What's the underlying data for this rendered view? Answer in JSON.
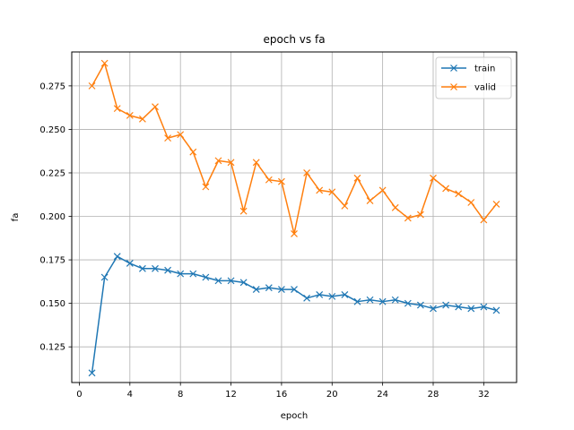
{
  "chart_data": {
    "type": "line",
    "title": "epoch vs fa",
    "xlabel": "epoch",
    "ylabel": "fa",
    "xlim": [
      -0.6,
      34.6
    ],
    "ylim": [
      0.1045,
      0.2945
    ],
    "xticks": [
      0,
      4,
      8,
      12,
      16,
      20,
      24,
      28,
      32
    ],
    "yticks": [
      0.125,
      0.15,
      0.175,
      0.2,
      0.225,
      0.25,
      0.275
    ],
    "ytick_labels": [
      "0.125",
      "0.150",
      "0.175",
      "0.200",
      "0.225",
      "0.250",
      "0.275"
    ],
    "grid": true,
    "legend_position": "top-right",
    "x": [
      1,
      2,
      3,
      4,
      5,
      6,
      7,
      8,
      9,
      10,
      11,
      12,
      13,
      14,
      15,
      16,
      17,
      18,
      19,
      20,
      21,
      22,
      23,
      24,
      25,
      26,
      27,
      28,
      29,
      30,
      31,
      32,
      33
    ],
    "series": [
      {
        "name": "train",
        "color": "#1f77b4",
        "marker": "x",
        "values": [
          0.11,
          0.165,
          0.177,
          0.173,
          0.17,
          0.17,
          0.169,
          0.167,
          0.167,
          0.165,
          0.163,
          0.163,
          0.162,
          0.158,
          0.159,
          0.158,
          0.158,
          0.153,
          0.155,
          0.154,
          0.155,
          0.151,
          0.152,
          0.151,
          0.152,
          0.15,
          0.149,
          0.147,
          0.149,
          0.148,
          0.147,
          0.148,
          0.146
        ]
      },
      {
        "name": "valid",
        "color": "#ff7f0e",
        "marker": "x",
        "values": [
          0.275,
          0.288,
          0.262,
          0.258,
          0.256,
          0.263,
          0.245,
          0.247,
          0.237,
          0.217,
          0.232,
          0.231,
          0.203,
          0.231,
          0.221,
          0.22,
          0.19,
          0.225,
          0.215,
          0.214,
          0.206,
          0.222,
          0.209,
          0.215,
          0.205,
          0.199,
          0.201,
          0.222,
          0.216,
          0.213,
          0.208,
          0.198,
          0.207
        ]
      }
    ]
  }
}
